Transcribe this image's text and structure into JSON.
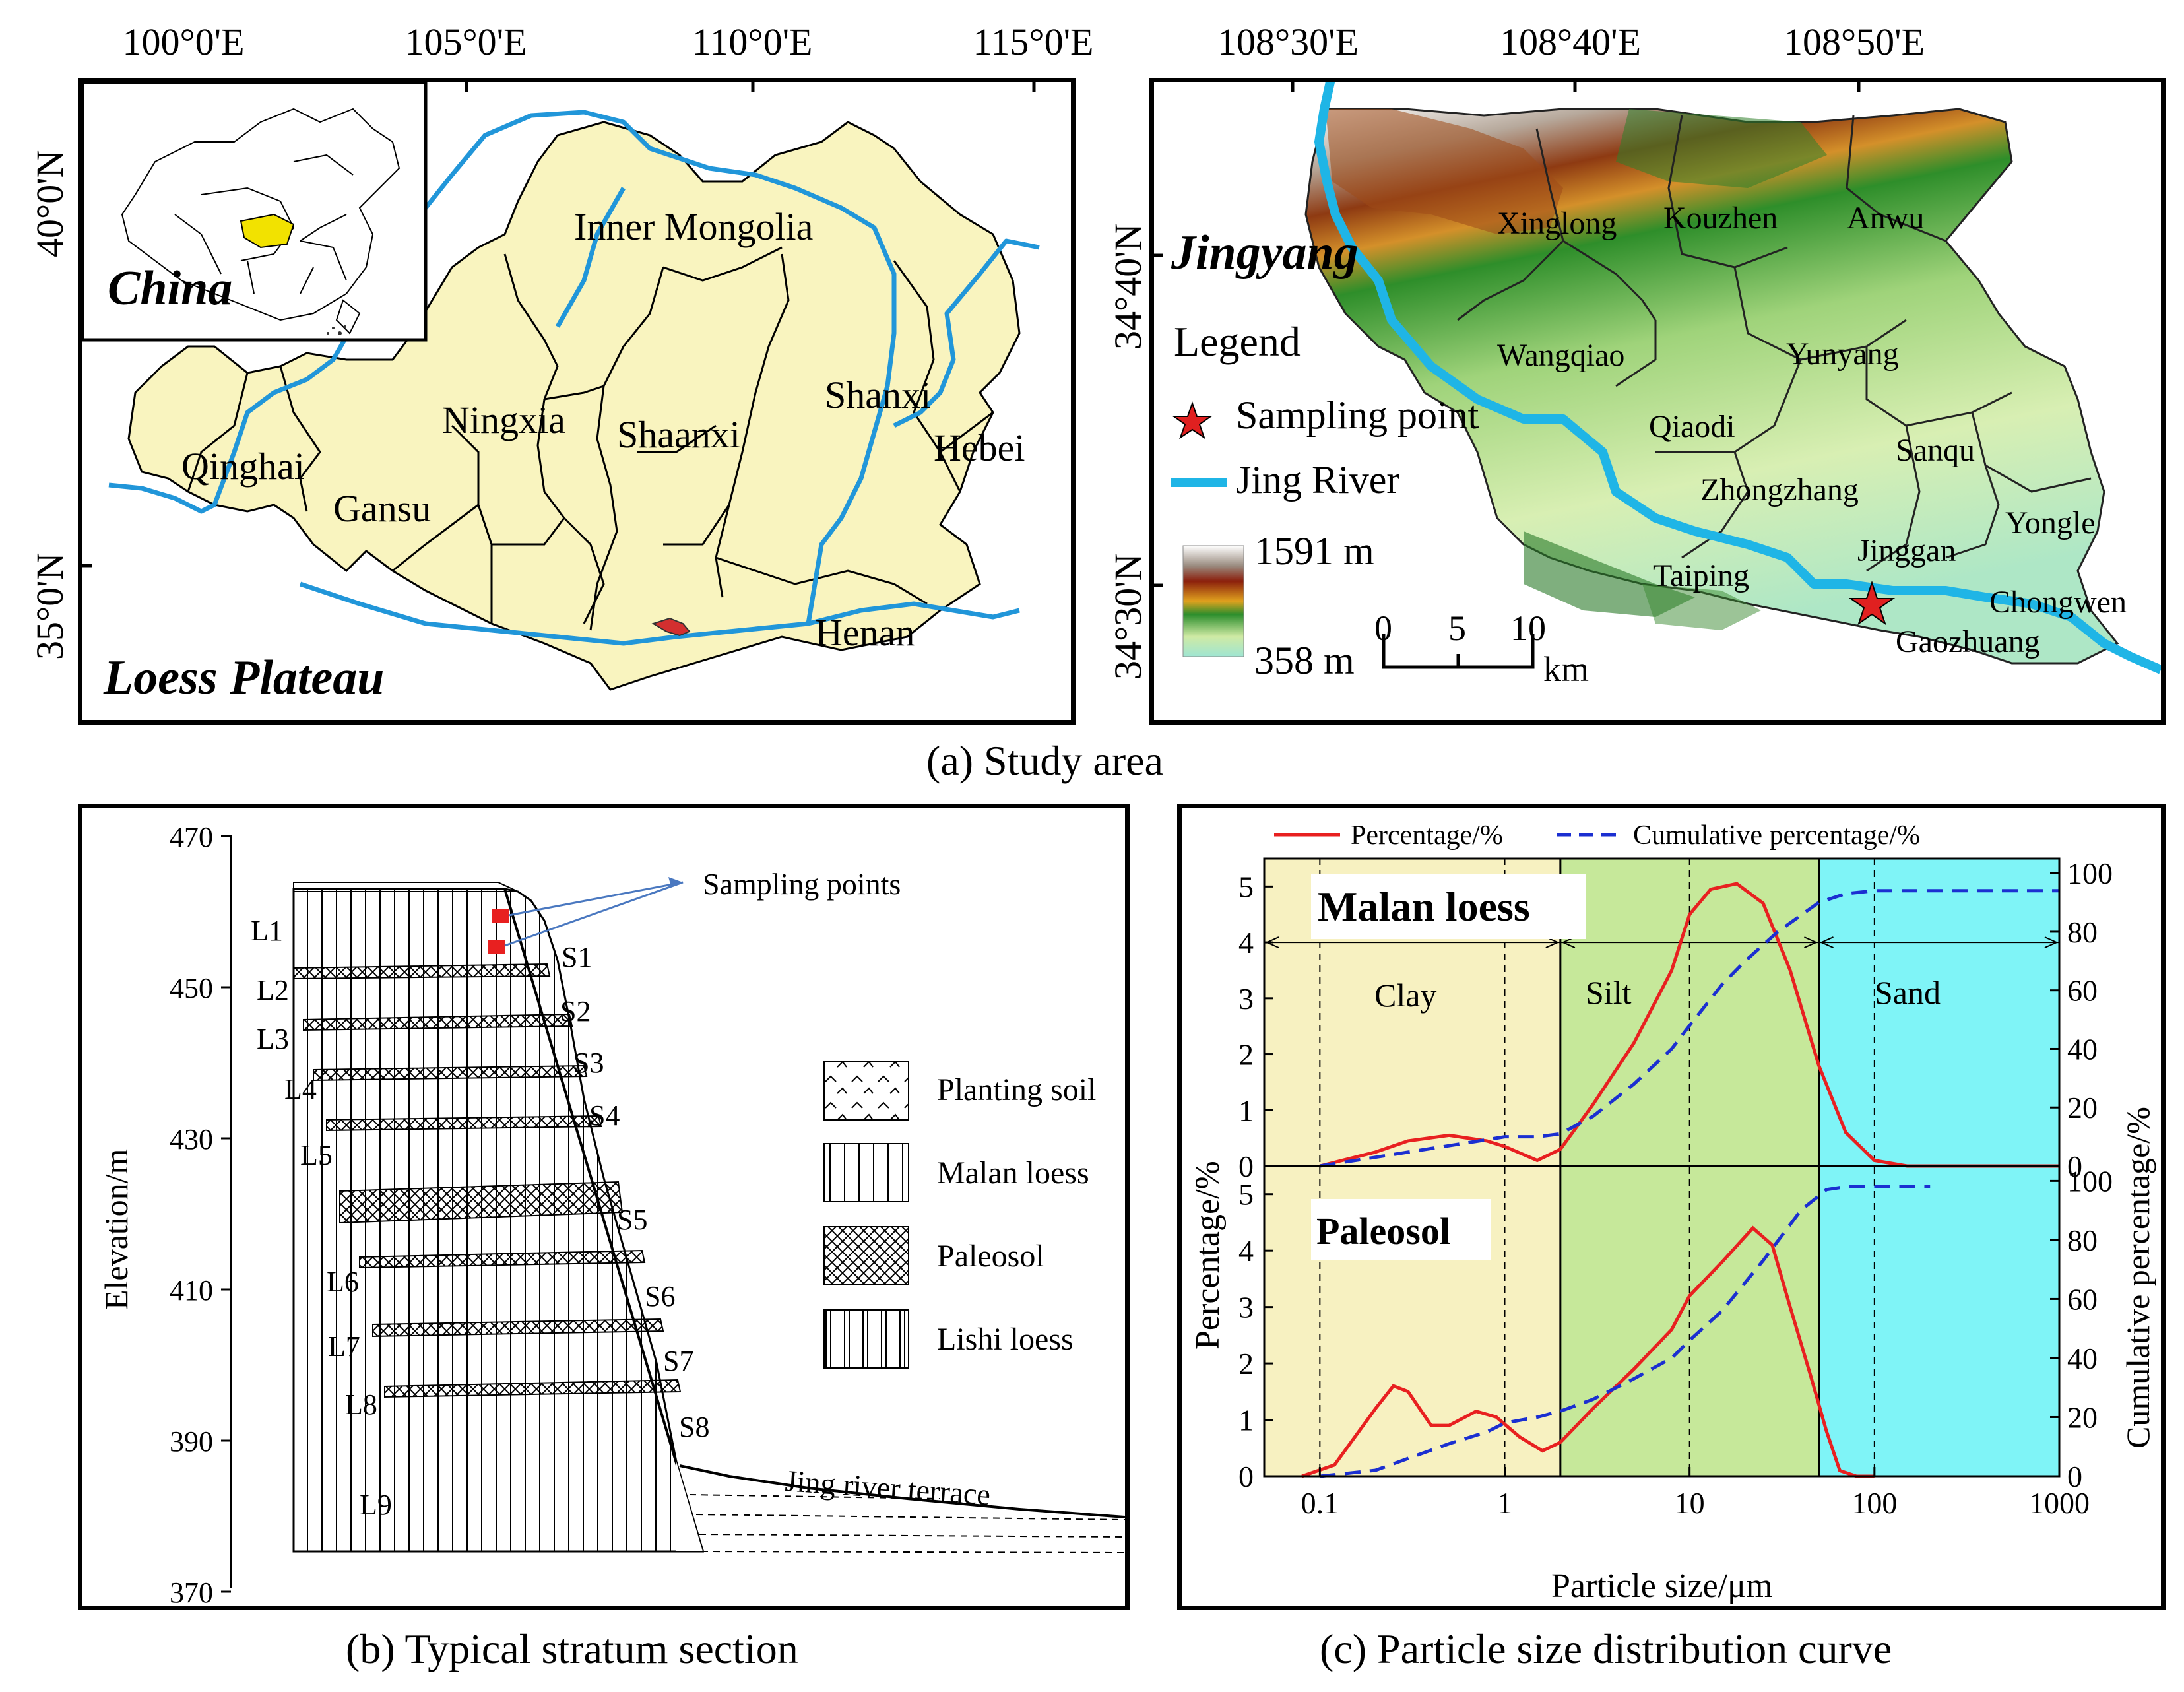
{
  "panel_a": {
    "caption": "(a) Study area",
    "left_map": {
      "lon_labels": [
        "100°0'E",
        "105°0'E",
        "110°0'E",
        "115°0'E"
      ],
      "lat_labels": [
        "40°0'N",
        "35°0'N"
      ],
      "inset_label": "China",
      "title": "Loess Plateau",
      "provinces": [
        "Inner Mongolia",
        "Ningxia",
        "Shaanxi",
        "Shanxi",
        "Hebei",
        "Qinghai",
        "Gansu",
        "Henan"
      ],
      "colors": {
        "plateau": "#f9f4bf",
        "river": "#2196d9",
        "study_area": "#d32f2f",
        "inset_highlight": "#f2e200"
      }
    },
    "right_map": {
      "lon_labels": [
        "108°30'E",
        "108°40'E",
        "108°50'E"
      ],
      "lat_labels": [
        "34°40'N",
        "34°30'N"
      ],
      "title": "Jingyang",
      "legend_title": "Legend",
      "legend_sampling": "Sampling point",
      "legend_river": "Jing River",
      "elev_max": "1591 m",
      "elev_min": "358 m",
      "scale_ticks": [
        "0",
        "5",
        "10"
      ],
      "scale_unit": "km",
      "towns": [
        "Xinglong",
        "Kouzhen",
        "Anwu",
        "Wangqiao",
        "Yunyang",
        "Qiaodi",
        "Sanqu",
        "Zhongzhang",
        "Jinggan",
        "Yongle",
        "Taiping",
        "Chongwen",
        "Gaozhuang"
      ],
      "colors": {
        "river": "#1fb5e6",
        "star": "#e02020"
      }
    }
  },
  "panel_b": {
    "caption": "(b) Typical stratum section",
    "y_label": "Elevation/m",
    "y_ticks": [
      470,
      450,
      430,
      410,
      390,
      370
    ],
    "sampling_label": "Sampling points",
    "terrace_label": "Jing river terrace",
    "loess_layers": [
      "L1",
      "L2",
      "L3",
      "L4",
      "L5",
      "L6",
      "L7",
      "L8",
      "L9"
    ],
    "paleosol_layers": [
      "S1",
      "S2",
      "S3",
      "S4",
      "S5",
      "S6",
      "S7",
      "S8"
    ],
    "legend": [
      "Planting soil",
      "Malan loess",
      "Paleosol",
      "Lishi loess"
    ]
  },
  "panel_c": {
    "caption": "(c) Particle size distribution curve",
    "legend_percentage": "Percentage/%",
    "legend_cumulative": "Cumulative percentage/%",
    "x_label": "Particle size/μm",
    "y_left_label": "Percentage/%",
    "y_right_label": "Cumulative percentage/%",
    "x_ticks": [
      "0.1",
      "1",
      "10",
      "100",
      "1000"
    ],
    "zone_labels": [
      "Clay",
      "Silt",
      "Sand"
    ],
    "top_title": "Malan loess",
    "bottom_title": "Paleosol",
    "colors": {
      "clay": "#f7f1c1",
      "silt": "#c6e89a",
      "sand": "#7ff4f7",
      "percentage": "#e82020",
      "cumulative": "#1b2fd1"
    }
  },
  "chart_data": {
    "type": "line",
    "x_scale": "log",
    "xlim": [
      0.05,
      1000
    ],
    "zone_bounds": [
      2,
      50
    ],
    "panels": [
      {
        "title": "Malan loess",
        "y_left_ticks": [
          0,
          1,
          2,
          3,
          4,
          5
        ],
        "y_right_ticks": [
          0,
          20,
          40,
          60,
          80,
          100
        ],
        "ylim_left": [
          0,
          5.5
        ],
        "ylim_right": [
          0,
          105
        ],
        "series": [
          {
            "name": "Percentage/%",
            "axis": "left",
            "x": [
              0.1,
              0.2,
              0.3,
              0.5,
              0.8,
              1.0,
              1.5,
              2.0,
              3,
              5,
              8,
              10,
              13,
              18,
              25,
              35,
              50,
              70,
              100,
              150,
              200,
              1000
            ],
            "y": [
              0.0,
              0.25,
              0.45,
              0.55,
              0.45,
              0.35,
              0.1,
              0.3,
              1.1,
              2.2,
              3.5,
              4.5,
              4.95,
              5.05,
              4.7,
              3.5,
              1.8,
              0.6,
              0.1,
              0.0,
              0.0,
              0.0
            ]
          },
          {
            "name": "Cumulative percentage/%",
            "axis": "right",
            "x": [
              0.1,
              0.2,
              0.4,
              0.8,
              1.0,
              1.5,
              2.0,
              3,
              5,
              8,
              10,
              15,
              20,
              30,
              50,
              70,
              100,
              200,
              1000
            ],
            "y": [
              0,
              3,
              6,
              9,
              10,
              10,
              11,
              17,
              28,
              40,
              48,
              62,
              70,
              80,
              90,
              93,
              94,
              94,
              94
            ]
          }
        ]
      },
      {
        "title": "Paleosol",
        "y_left_ticks": [
          0,
          1,
          2,
          3,
          4,
          5
        ],
        "y_right_ticks": [
          0,
          20,
          40,
          60,
          80,
          100
        ],
        "ylim_left": [
          0,
          5.5
        ],
        "ylim_right": [
          0,
          105
        ],
        "series": [
          {
            "name": "Percentage/%",
            "axis": "left",
            "x": [
              0.08,
              0.12,
              0.2,
              0.25,
              0.3,
              0.4,
              0.5,
              0.7,
              0.9,
              1.2,
              1.6,
              2.0,
              3,
              5,
              8,
              10,
              15,
              22,
              28,
              35,
              45,
              55,
              65,
              80,
              100
            ],
            "y": [
              0.0,
              0.2,
              1.2,
              1.6,
              1.5,
              0.9,
              0.9,
              1.15,
              1.05,
              0.7,
              0.45,
              0.6,
              1.2,
              1.9,
              2.6,
              3.2,
              3.8,
              4.4,
              4.1,
              3.0,
              1.8,
              0.8,
              0.1,
              0.0,
              0.0
            ]
          },
          {
            "name": "Cumulative percentage/%",
            "axis": "right",
            "x": [
              0.1,
              0.2,
              0.3,
              0.5,
              0.8,
              1.0,
              1.5,
              2.0,
              3,
              5,
              8,
              10,
              15,
              25,
              40,
              55,
              70,
              100,
              150,
              200
            ],
            "y": [
              0,
              2,
              6,
              11,
              15,
              18,
              20,
              22,
              26,
              33,
              40,
              46,
              56,
              73,
              90,
              97,
              98,
              98,
              98,
              98
            ]
          }
        ]
      }
    ]
  }
}
